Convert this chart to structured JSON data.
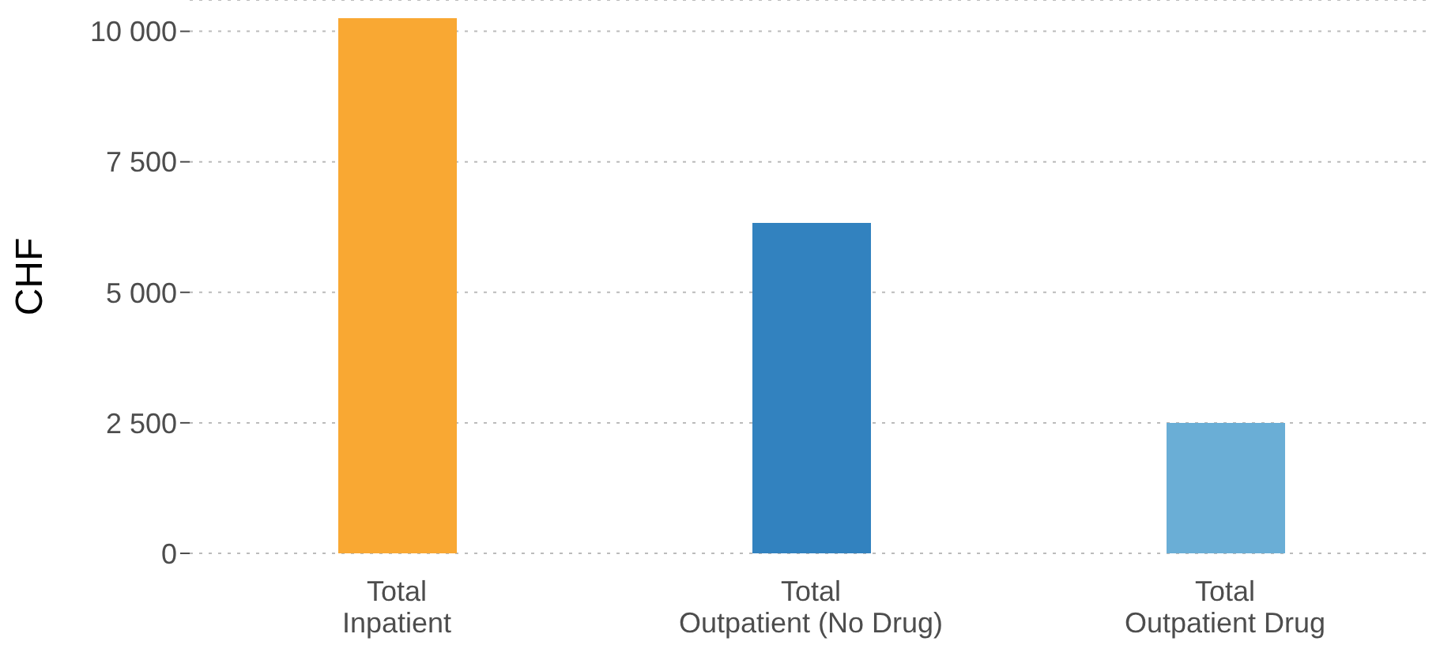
{
  "chart_data": {
    "type": "bar",
    "ylabel": "CHF",
    "categories": [
      "Total Inpatient",
      "Total Outpatient (No Drug)",
      "Total Outpatient Drug"
    ],
    "values": [
      10250,
      6330,
      2500
    ],
    "colors": [
      "#f9a833",
      "#3282bf",
      "#6aaed6"
    ],
    "ylim": [
      0,
      10600
    ],
    "yticks": [
      0,
      {
        "value": 2500,
        "label": "2 500"
      },
      {
        "value": 5000,
        "label": "5 000"
      },
      {
        "value": 7500,
        "label": "7 500"
      },
      {
        "value": 10000,
        "label": "10 000"
      }
    ],
    "grid": "y",
    "legend": false
  }
}
